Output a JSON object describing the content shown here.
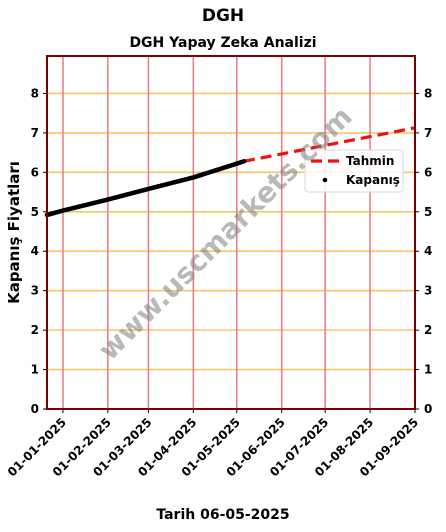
{
  "page": {
    "title": "DGH",
    "footer": "Tarih 06-05-2025",
    "watermark": "www.uscmarkets.com"
  },
  "chart_data": {
    "type": "line",
    "title": "DGH Yapay Zeka Analizi",
    "xlabel": "",
    "ylabel": "Kapanış Fiyatları",
    "ylim": [
      0,
      8.95
    ],
    "yticks": [
      0,
      1,
      2,
      3,
      4,
      5,
      6,
      7,
      8
    ],
    "x_tick_labels": [
      "01-01-2025",
      "01-02-2025",
      "01-03-2025",
      "01-04-2025",
      "01-05-2025",
      "01-06-2025",
      "01-07-2025",
      "01-08-2025",
      "01-09-2025"
    ],
    "xlim": [
      "2024-12-21",
      "2025-09-01"
    ],
    "grid": true,
    "legend_placement": "right",
    "colors": {
      "forecast": "#ee1111",
      "close": "#000000",
      "hgrid": "#f5c66a",
      "vgrid": "#e8828a",
      "frame": "#7a0000"
    },
    "series": [
      {
        "name": "Tahmin",
        "style": "dashed",
        "points": [
          {
            "x": "2025-05-06",
            "y": 6.28
          },
          {
            "x": "2025-09-01",
            "y": 7.13
          }
        ]
      },
      {
        "name": "Kapanış",
        "style": "points",
        "points": [
          {
            "x": "2024-12-21",
            "y": 4.92
          },
          {
            "x": "2025-01-01",
            "y": 5.03
          },
          {
            "x": "2025-02-01",
            "y": 5.31
          },
          {
            "x": "2025-03-01",
            "y": 5.58
          },
          {
            "x": "2025-04-01",
            "y": 5.87
          },
          {
            "x": "2025-05-06",
            "y": 6.28
          }
        ]
      }
    ]
  }
}
